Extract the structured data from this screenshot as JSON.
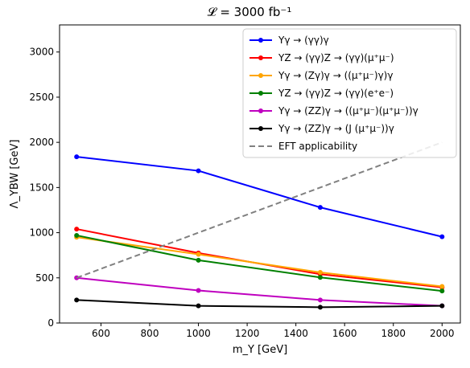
{
  "chart_data": {
    "type": "line",
    "title": "𝓛 = 3000 fb⁻¹",
    "xlabel": "m_Y [GeV]",
    "ylabel": "Λ_YBW [GeV]",
    "xlim": [
      430,
      2075
    ],
    "ylim": [
      0,
      3300
    ],
    "x_ticks": [
      600,
      800,
      1000,
      1200,
      1400,
      1600,
      1800,
      2000
    ],
    "y_ticks": [
      0,
      500,
      1000,
      1500,
      2000,
      2500,
      3000
    ],
    "grid": false,
    "legend_position": "top-right",
    "series": [
      {
        "name": "Yγ → (γγ)γ",
        "color": "#0000ff",
        "style": "solid-marker",
        "x": [
          500,
          1000,
          1500,
          2000
        ],
        "y": [
          1840,
          1685,
          1280,
          955
        ]
      },
      {
        "name": "YZ → (γγ)Z → (γγ)(μ⁺μ⁻)",
        "color": "#ff0000",
        "style": "solid-marker",
        "x": [
          500,
          1000,
          1500,
          2000
        ],
        "y": [
          1040,
          775,
          540,
          395
        ]
      },
      {
        "name": "Yγ → (Zγ)γ → ((μ⁺μ⁻)γ)γ",
        "color": "#ffa500",
        "style": "solid-marker",
        "x": [
          500,
          1000,
          1500,
          2000
        ],
        "y": [
          950,
          760,
          560,
          405
        ]
      },
      {
        "name": "YZ → (γγ)Z → (γγ)(e⁺e⁻)",
        "color": "#008000",
        "style": "solid-marker",
        "x": [
          500,
          1000,
          1500,
          2000
        ],
        "y": [
          970,
          695,
          505,
          355
        ]
      },
      {
        "name": "Yγ → (ZZ)γ → ((μ⁺μ⁻)(μ⁺μ⁻))γ",
        "color": "#bf00bf",
        "style": "solid-marker",
        "x": [
          500,
          1000,
          1500,
          2000
        ],
        "y": [
          500,
          360,
          255,
          190
        ]
      },
      {
        "name": "Yγ → (ZZ)γ → (J (μ⁺μ⁻))γ",
        "color": "#000000",
        "style": "solid-marker",
        "x": [
          500,
          1000,
          1500,
          2000
        ],
        "y": [
          255,
          190,
          175,
          190
        ]
      },
      {
        "name": "EFT applicability",
        "color": "#808080",
        "style": "dashed",
        "x": [
          500,
          2000
        ],
        "y": [
          500,
          2000
        ]
      }
    ]
  }
}
